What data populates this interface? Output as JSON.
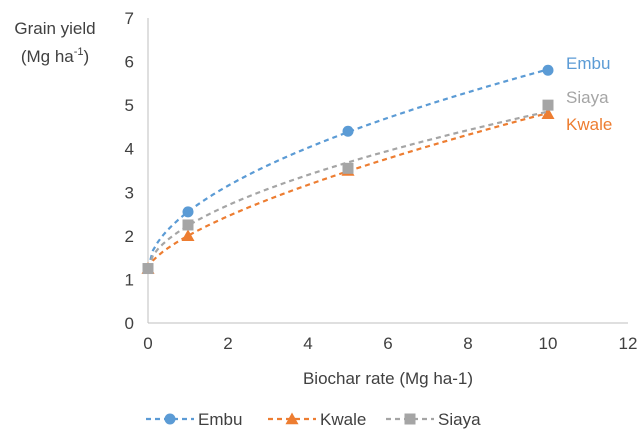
{
  "chart_data": {
    "type": "line",
    "xlabel": "Biochar rate (Mg ha-1)",
    "ylabel_line1": "Grain yield",
    "ylabel_line2_prefix": "(Mg ha",
    "ylabel_line2_sup": "-1",
    "ylabel_line2_suffix": ")",
    "xlim": [
      0,
      12
    ],
    "ylim": [
      0,
      7
    ],
    "xticks": [
      0,
      2,
      4,
      6,
      8,
      10,
      12
    ],
    "yticks": [
      0,
      1,
      2,
      3,
      4,
      5,
      6,
      7
    ],
    "x": [
      0,
      1,
      5,
      10
    ],
    "series": [
      {
        "name": "Embu",
        "values": [
          1.25,
          2.55,
          4.4,
          5.8
        ],
        "color": "#5b9bd5",
        "marker": "circle"
      },
      {
        "name": "Kwale",
        "values": [
          1.25,
          2.0,
          3.5,
          4.8
        ],
        "color": "#ed7d31",
        "marker": "triangle"
      },
      {
        "name": "Siaya",
        "values": [
          1.25,
          2.25,
          3.55,
          5.0
        ],
        "color": "#a5a5a5",
        "marker": "square"
      }
    ],
    "legend_position": "bottom",
    "grid": false,
    "annotations": [
      "Embu",
      "Siaya",
      "Kwale"
    ]
  }
}
